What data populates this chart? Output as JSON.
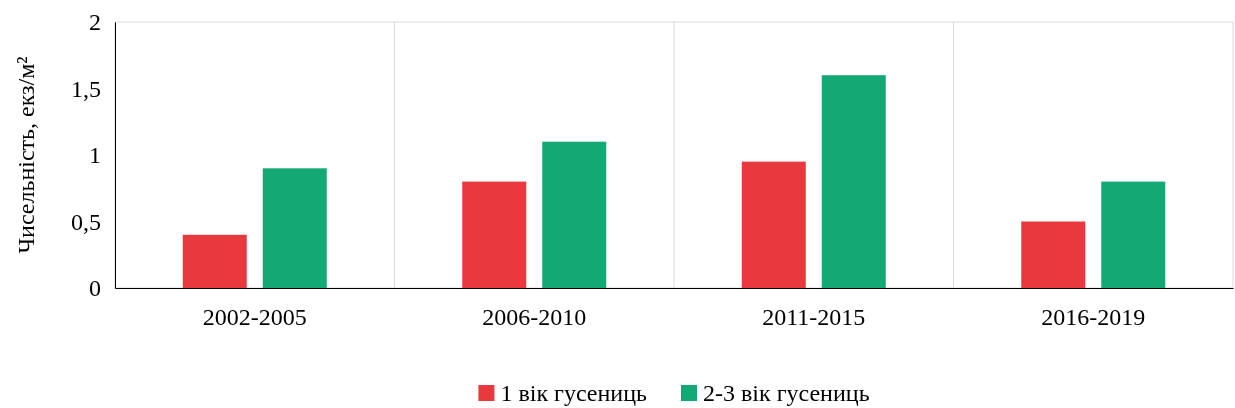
{
  "chart_data": {
    "type": "bar",
    "ylabel": "Чисельність, екз/м²",
    "categories": [
      "2002-2005",
      "2006-2010",
      "2011-2015",
      "2016-2019"
    ],
    "series": [
      {
        "name": "1 вік гусениць",
        "color": "#e8393f",
        "values": [
          0.4,
          0.8,
          0.95,
          0.5
        ]
      },
      {
        "name": "2-3 вік гусениць",
        "color": "#14a874",
        "values": [
          0.9,
          1.1,
          1.6,
          0.8
        ]
      }
    ],
    "ylim": [
      0,
      2
    ],
    "yticks": [
      0,
      {
        "value": 0.5,
        "label": "0,5"
      },
      1,
      {
        "value": 1.5,
        "label": "1,5"
      },
      2
    ],
    "grid": "x",
    "legend": "bottom"
  }
}
